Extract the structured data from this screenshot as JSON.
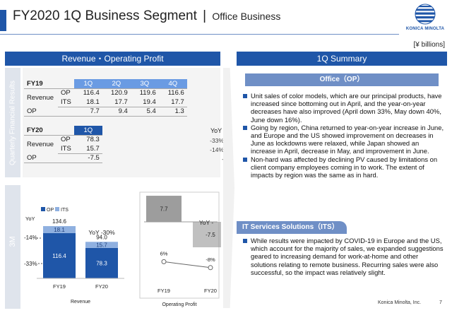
{
  "header": {
    "title": "FY2020 1Q Business Segment",
    "separator": "|",
    "subtitle": "Office Business",
    "logo_text": "KONICA MINOLTA"
  },
  "unit": "[¥ billions]",
  "left_panel": {
    "title": "Revenue・Operating Profit",
    "side_label_top": "Quarterly Financial Results",
    "side_label_bottom": "3M",
    "fy19": {
      "label": "FY19",
      "quarters": [
        "1Q",
        "2Q",
        "3Q",
        "4Q"
      ],
      "revenue_label": "Revenue",
      "op_label": "OP",
      "its_label": "ITS",
      "op_row_label": "OP",
      "revenue_op": [
        "116.4",
        "120.9",
        "119.6",
        "116.6"
      ],
      "revenue_its": [
        "18.1",
        "17.7",
        "19.4",
        "17.7"
      ],
      "op": [
        "7.7",
        "9.4",
        "5.4",
        "1.3"
      ]
    },
    "fy20": {
      "label": "FY20",
      "quarter": "1Q",
      "revenue_label": "Revenue",
      "op_label": "OP",
      "its_label": "ITS",
      "op_row_label": "OP",
      "revenue_op": "78.3",
      "revenue_its": "15.7",
      "op": "-7.5",
      "yoy_label": "YoY",
      "yoy_op": "-33%",
      "yoy_its": "-14%",
      "yoy_profit": "-"
    }
  },
  "right_panel": {
    "title": "1Q Summary",
    "office_title": "Office（OP）",
    "office_bullets": [
      "Unit sales of color models, which are our principal products, have increased since bottoming out in April, and the year-on-year decreases have also improved (April down 33%, May down 40%, June down 16%).",
      "Going by region, China returned to year-on-year increase in June, and Europe and the US showed improvement on decreases in June as lockdowns were relaxed, while Japan showed an increase in April, decrease in May, and improvement in June.",
      "Non-hard was affected by declining PV caused by limitations on client company employees coming in to work. The extent of impacts by region was the same as in hard."
    ],
    "its_title": "IT Services Solutions（ITS）",
    "its_bullets": [
      "While results were impacted by COVID-19 in Europe and the US, which account for the majority of sales, we expanded suggestions geared to increasing demand for work-at-home and other solutions relating to remote business. Recurring sales were also successful, so the impact was relatively slight."
    ]
  },
  "footer": {
    "company": "Konica Minolta, Inc.",
    "page": "7"
  },
  "colors": {
    "brand_blue": "#1f56a8",
    "op_bar": "#1f56a8",
    "its_bar": "#8fb0e0",
    "profit_bar": "#8c8c8c"
  },
  "chart_data": [
    {
      "type": "bar",
      "stacked": true,
      "categories": [
        "FY19",
        "FY20"
      ],
      "series": [
        {
          "name": "OP",
          "values": [
            116.4,
            78.3
          ]
        },
        {
          "name": "ITS",
          "values": [
            18.1,
            15.7
          ]
        }
      ],
      "totals": [
        134.6,
        94.0
      ],
      "yoy_labels": [
        "YoY",
        "-14%",
        "-33%"
      ],
      "annotation": "YoY  -30%",
      "xlabel": "Revenue",
      "ylabel": "",
      "legend": "top-left"
    },
    {
      "type": "bar",
      "categories": [
        "FY19",
        "FY20"
      ],
      "series": [
        {
          "values": [
            7.7,
            -7.5
          ]
        }
      ],
      "margin_line": {
        "values": [
          6,
          -8
        ],
        "labels": [
          "6%",
          "-8%"
        ]
      },
      "annotation": "YoY -",
      "xlabel": "Operating Profit",
      "ylabel": ""
    }
  ]
}
